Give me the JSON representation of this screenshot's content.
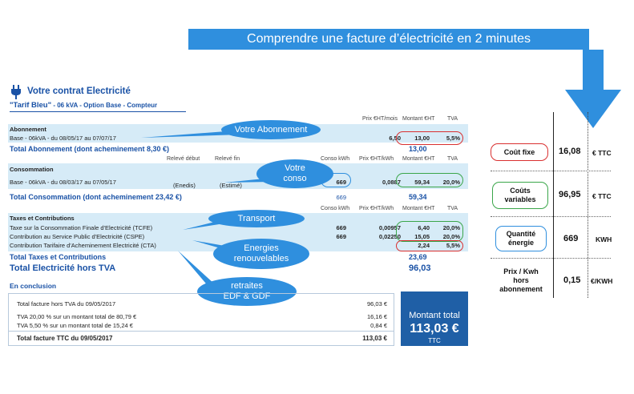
{
  "banner": {
    "title": "Comprendre une facture d’électricité en 2 minutes"
  },
  "contract": {
    "title": "Votre contrat Electricité",
    "tariff_name": "\"Tarif Bleu\"",
    "tariff_detail": " - 06 kVA - Option Base - Compteur"
  },
  "abonnement": {
    "col_headers": [
      "Prix €HT/mois",
      "Montant €HT",
      "TVA"
    ],
    "section": "Abonnement",
    "line": "Base - 06kVA - du 08/05/17 au 07/07/17",
    "price": "6,50",
    "amount": "13,00",
    "vat": "5,5%",
    "total_label": "Total Abonnement (dont acheminement 8,30 €)",
    "total_value": "13,00"
  },
  "consommation": {
    "col_headers": [
      "Relevé début",
      "Relevé fin",
      "Conso kWh",
      "Prix €HT/kWh",
      "Montant €HT",
      "TVA"
    ],
    "section": "Consommation",
    "line": "Base - 06kVA - du 08/03/17 au 07/05/17",
    "start_note": "(Enedis)",
    "end_note": "(Estimé)",
    "kwh": "669",
    "price": "0,0887",
    "amount": "59,34",
    "vat": "20,0%",
    "total_label": "Total Consommation (dont acheminement 23,42 €)",
    "total_kwh": "669",
    "total_value": "59,34"
  },
  "taxes": {
    "col_headers": [
      "Conso kWh",
      "Prix €HT/kWh",
      "Montant €HT",
      "TVA"
    ],
    "section": "Taxes et Contributions",
    "rows": [
      {
        "label": "Taxe sur la Consommation Finale d'Electricité (TCFE)",
        "kwh": "669",
        "price": "0,00957",
        "amount": "6,40",
        "vat": "20,0%"
      },
      {
        "label": "Contribution au Service Public d'Electricité (CSPE)",
        "kwh": "669",
        "price": "0,02250",
        "amount": "15,05",
        "vat": "20,0%"
      },
      {
        "label": "Contribution Tarifaire d'Acheminement Electricité (CTA)",
        "kwh": "",
        "price": "",
        "amount": "2,24",
        "vat": "5,5%"
      }
    ],
    "total_label": "Total Taxes et Contributions",
    "total_value": "23,69",
    "grand_label": "Total Electricité hors TVA",
    "grand_value": "96,03"
  },
  "callouts": {
    "abonnement": "Votre Abonnement",
    "conso_1": "Votre",
    "conso_2": "conso",
    "transport": "Transport",
    "energies_1": "Energies",
    "energies_2": "renouvelables",
    "retraites_1": "retraites",
    "retraites_2": "EDF & GDF"
  },
  "conclusion": {
    "title": "En conclusion",
    "rows": [
      {
        "label": "Total facture hors TVA du 09/05/2017",
        "value": "96,03 €"
      },
      {
        "label": "TVA 20,00 % sur un montant total de 80,79 €",
        "value": "16,16 €"
      },
      {
        "label": "TVA 5,50 % sur un montant total de 15,24 €",
        "value": "0,84 €"
      }
    ],
    "total_label": "Total facture TTC du 09/05/2017",
    "total_value": "113,03 €",
    "box_title_1": "Montant total",
    "box_amount": "113,03 €",
    "box_sub": "TTC"
  },
  "summary": [
    {
      "label_1": "Coût fixe",
      "label_2": "",
      "value": "16,08",
      "unit": "€ TTC",
      "border": "#d93030"
    },
    {
      "label_1": "Coûts",
      "label_2": "variables",
      "value": "96,95",
      "unit": "€ TTC",
      "border": "#3aa64a"
    },
    {
      "label_1": "Quantité",
      "label_2": "énergie",
      "value": "669",
      "unit": "KWH",
      "border": "#2f8fde"
    },
    {
      "label_1": "Prix / Kwh",
      "label_2": "hors",
      "label_3": "abonnement",
      "value": "0,15",
      "unit": "€/KWH"
    }
  ]
}
